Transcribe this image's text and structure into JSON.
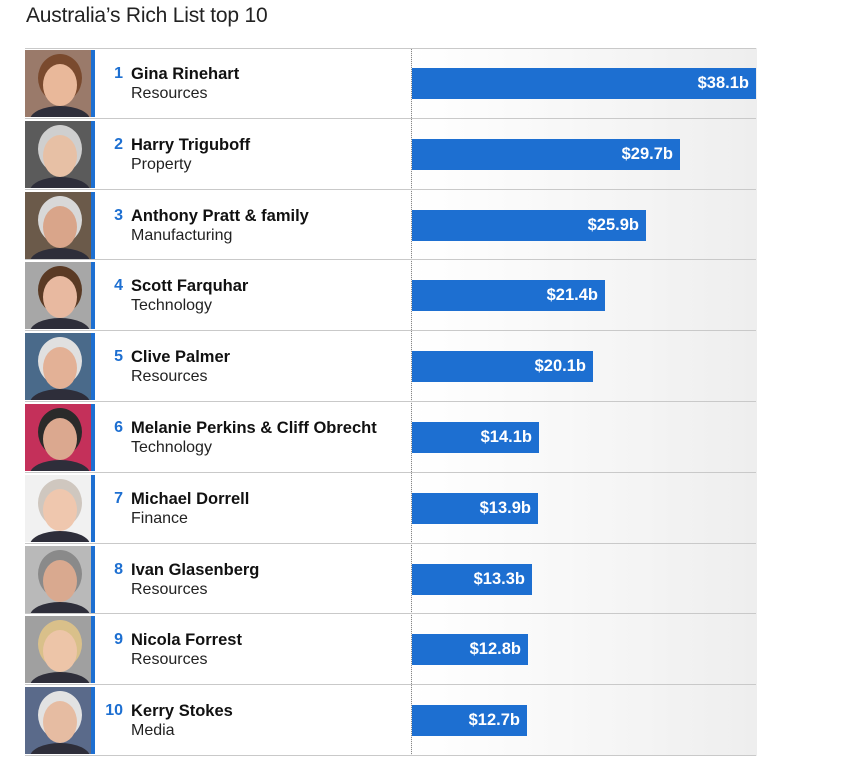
{
  "title": "Australia’s Rich List top 10",
  "colors": {
    "bar": "#1d6fd1",
    "rank": "#1d6fd1"
  },
  "chart_data": {
    "type": "bar",
    "orientation": "horizontal",
    "title": "Australia’s Rich List top 10",
    "xlabel": "",
    "ylabel": "",
    "value_unit": "$b",
    "xlim": [
      0,
      38.1
    ],
    "grid": false,
    "rows": [
      {
        "rank": "1",
        "name": "Gina Rinehart",
        "industry": "Resources",
        "value": 38.1,
        "label": "$38.1b"
      },
      {
        "rank": "2",
        "name": "Harry Triguboff",
        "industry": "Property",
        "value": 29.7,
        "label": "$29.7b"
      },
      {
        "rank": "3",
        "name": "Anthony Pratt & family",
        "industry": "Manufacturing",
        "value": 25.9,
        "label": "$25.9b"
      },
      {
        "rank": "4",
        "name": "Scott Farquhar",
        "industry": "Technology",
        "value": 21.4,
        "label": "$21.4b"
      },
      {
        "rank": "5",
        "name": "Clive Palmer",
        "industry": "Resources",
        "value": 20.1,
        "label": "$20.1b"
      },
      {
        "rank": "6",
        "name": "Melanie Perkins & Cliff Obrecht",
        "industry": "Technology",
        "value": 14.1,
        "label": "$14.1b"
      },
      {
        "rank": "7",
        "name": "Michael Dorrell",
        "industry": "Finance",
        "value": 13.9,
        "label": "$13.9b"
      },
      {
        "rank": "8",
        "name": "Ivan Glasenberg",
        "industry": "Resources",
        "value": 13.3,
        "label": "$13.3b"
      },
      {
        "rank": "9",
        "name": "Nicola Forrest",
        "industry": "Resources",
        "value": 12.8,
        "label": "$12.8b"
      },
      {
        "rank": "10",
        "name": "Kerry Stokes",
        "industry": "Media",
        "value": 12.7,
        "label": "$12.7b"
      }
    ]
  }
}
